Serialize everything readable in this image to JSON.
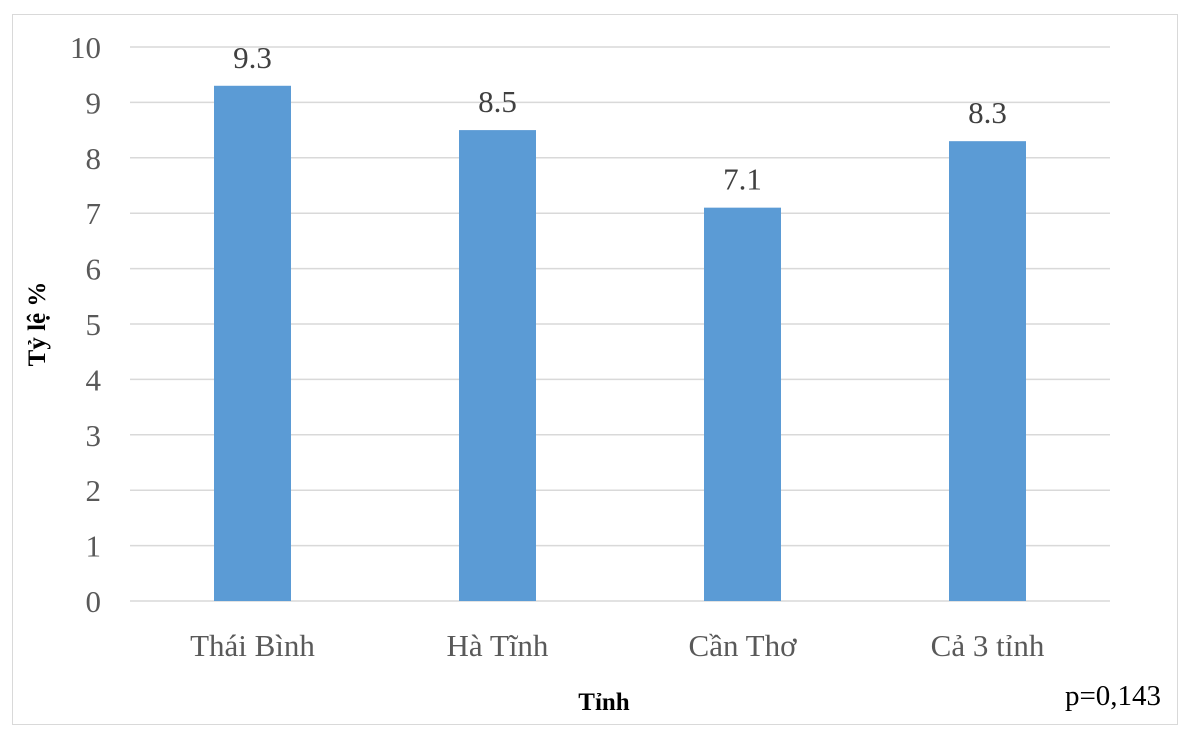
{
  "chart_data": {
    "type": "bar",
    "categories": [
      "Thái Bình",
      "Hà Tĩnh",
      "Cần Thơ",
      "Cả 3 tỉnh"
    ],
    "values": [
      9.3,
      8.5,
      7.1,
      8.3
    ],
    "data_labels": [
      "9.3",
      "8.5",
      "7.1",
      "8.3"
    ],
    "xlabel": "Tỉnh",
    "ylabel": "Tỷ lệ %",
    "ylim": [
      0,
      10
    ],
    "yticks": [
      "0",
      "1",
      "2",
      "3",
      "4",
      "5",
      "6",
      "7",
      "8",
      "9",
      "10"
    ],
    "grid": true,
    "legend": "none",
    "bar_color": "#5B9BD5",
    "annotation": "p=0,143"
  }
}
